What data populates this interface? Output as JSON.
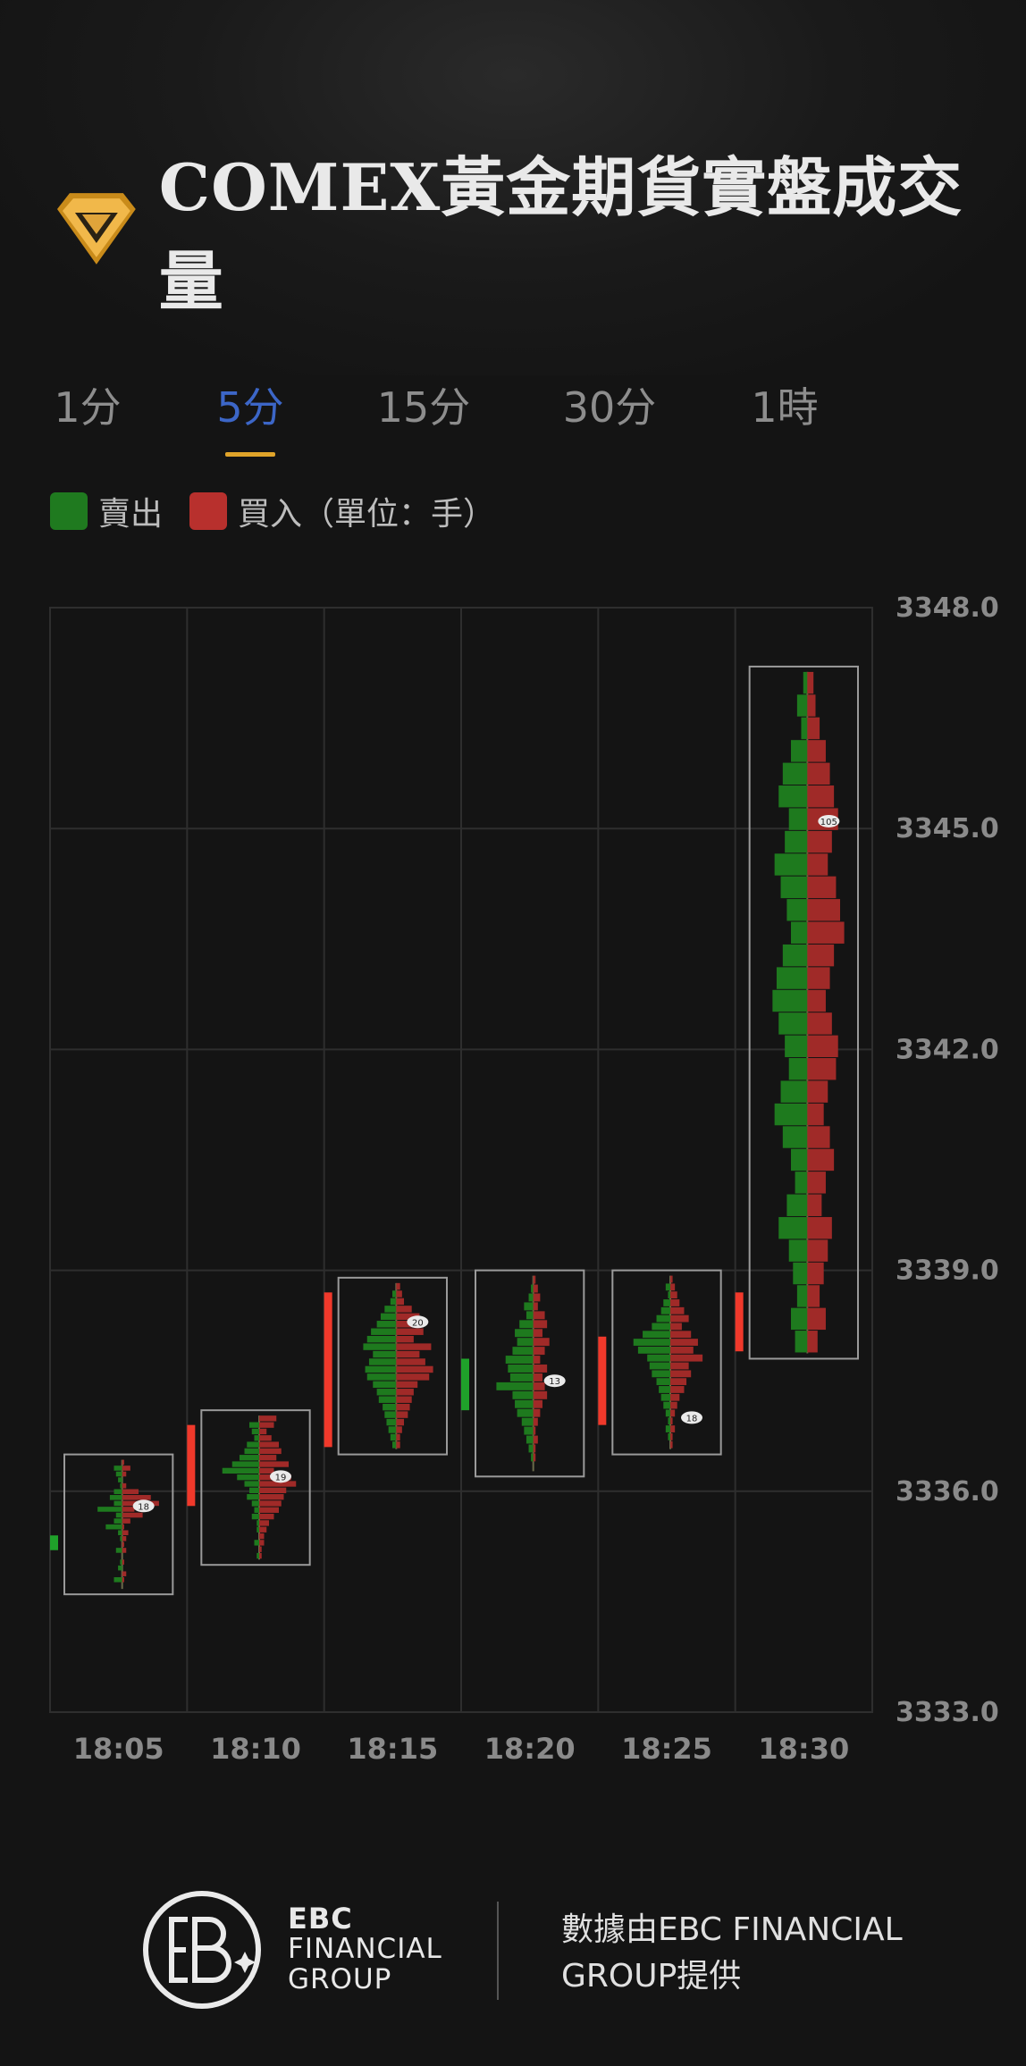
{
  "header": {
    "title": "COMEX黃金期貨實盤成交量"
  },
  "tabs": [
    {
      "label": "1分",
      "active": false
    },
    {
      "label": "5分",
      "active": true
    },
    {
      "label": "15分",
      "active": false
    },
    {
      "label": "30分",
      "active": false
    },
    {
      "label": "1時",
      "active": false
    }
  ],
  "legend": {
    "sell_label": "賣出",
    "buy_label": "買入（單位：手）",
    "sell_color": "#1f7a1f",
    "buy_color": "#b8302d"
  },
  "colors": {
    "up": "#f0392b",
    "down": "#1fa12a",
    "sell_bar": "#1e7a1e",
    "buy_bar": "#a02a28",
    "grid": "#2e2e2e",
    "axis_text": "#8a8a8a"
  },
  "chart_data": {
    "type": "footprint",
    "ylim": [
      3333.0,
      3348.0
    ],
    "yticks": [
      "3348.0",
      "3345.0",
      "3342.0",
      "3339.0",
      "3336.0",
      "3333.0"
    ],
    "tick_step": 0.1,
    "candles": [
      {
        "time": "18:05",
        "open": 3335.4,
        "close": 3335.2,
        "high": 3336.5,
        "low": 3334.6,
        "sell": [
          0,
          4,
          3,
          2,
          1,
          4,
          6,
          4,
          12,
          3,
          4,
          8,
          2,
          1,
          0,
          3,
          0,
          1,
          2,
          0,
          4,
          0
        ],
        "buy": [
          1,
          4,
          2,
          0,
          2,
          8,
          14,
          18,
          6,
          10,
          4,
          1,
          3,
          2,
          1,
          2,
          0,
          1,
          0,
          2,
          1,
          0
        ],
        "poc_price": 3335.8,
        "poc_label": "18"
      },
      {
        "time": "18:10",
        "open": 3335.8,
        "close": 3336.9,
        "high": 3337.1,
        "low": 3335.0,
        "sell": [
          0,
          4,
          3,
          2,
          5,
          6,
          8,
          11,
          15,
          9,
          6,
          4,
          5,
          3,
          2,
          3,
          1,
          1,
          0,
          2,
          0,
          1
        ],
        "buy": [
          7,
          6,
          3,
          5,
          8,
          9,
          7,
          12,
          6,
          13,
          15,
          11,
          10,
          9,
          8,
          6,
          4,
          3,
          2,
          2,
          1,
          1
        ],
        "poc_price": 3336.2,
        "poc_label": "19"
      },
      {
        "time": "18:15",
        "open": 3336.6,
        "close": 3338.7,
        "high": 3338.9,
        "low": 3336.5,
        "sell": [
          0,
          2,
          3,
          6,
          8,
          10,
          13,
          15,
          17,
          12,
          14,
          16,
          15,
          12,
          10,
          9,
          7,
          6,
          5,
          4,
          3,
          2
        ],
        "buy": [
          2,
          3,
          4,
          8,
          12,
          10,
          14,
          9,
          18,
          12,
          15,
          19,
          17,
          11,
          9,
          8,
          7,
          6,
          4,
          3,
          2,
          2
        ],
        "poc_price": 3338.3,
        "poc_label": "20"
      },
      {
        "time": "18:20",
        "open": 3337.8,
        "close": 3337.1,
        "high": 3339.0,
        "low": 3336.2,
        "sell": [
          0,
          1,
          2,
          4,
          3,
          6,
          8,
          7,
          9,
          12,
          11,
          10,
          16,
          9,
          8,
          7,
          5,
          4,
          3,
          2,
          1,
          0
        ],
        "buy": [
          1,
          2,
          3,
          2,
          5,
          6,
          4,
          7,
          5,
          3,
          6,
          4,
          5,
          6,
          4,
          3,
          2,
          1,
          2,
          1,
          1,
          0
        ],
        "poc_price": 3337.5,
        "poc_label": "13"
      },
      {
        "time": "18:25",
        "open": 3336.9,
        "close": 3338.1,
        "high": 3339.0,
        "low": 3336.5,
        "sell": [
          0,
          2,
          1,
          3,
          4,
          6,
          8,
          12,
          16,
          14,
          10,
          9,
          8,
          6,
          5,
          4,
          3,
          2,
          1,
          2,
          1,
          0
        ],
        "buy": [
          1,
          2,
          3,
          4,
          6,
          8,
          5,
          9,
          12,
          10,
          14,
          8,
          9,
          7,
          6,
          4,
          3,
          2,
          1,
          2,
          1,
          1
        ],
        "poc_price": 3337.0,
        "poc_label": "18"
      },
      {
        "time": "18:30",
        "open": 3337.9,
        "close": 3338.7,
        "high": 3347.2,
        "low": 3337.8,
        "sell": [
          2,
          5,
          3,
          8,
          12,
          14,
          9,
          11,
          16,
          13,
          10,
          8,
          12,
          15,
          17,
          14,
          11,
          9,
          13,
          16,
          12,
          8,
          6,
          10,
          14,
          9,
          7,
          5,
          8,
          6
        ],
        "buy": [
          3,
          4,
          6,
          9,
          11,
          13,
          15,
          12,
          10,
          14,
          16,
          18,
          13,
          11,
          9,
          12,
          15,
          14,
          10,
          8,
          11,
          13,
          9,
          7,
          12,
          10,
          8,
          6,
          9,
          5
        ],
        "poc_price": 3345.1,
        "poc_label": "105"
      }
    ]
  },
  "footer": {
    "brand_line1": "EBC",
    "brand_line2": "FINANCIAL",
    "brand_line3": "GROUP",
    "credit": "數據由EBC FINANCIAL GROUP提供"
  }
}
